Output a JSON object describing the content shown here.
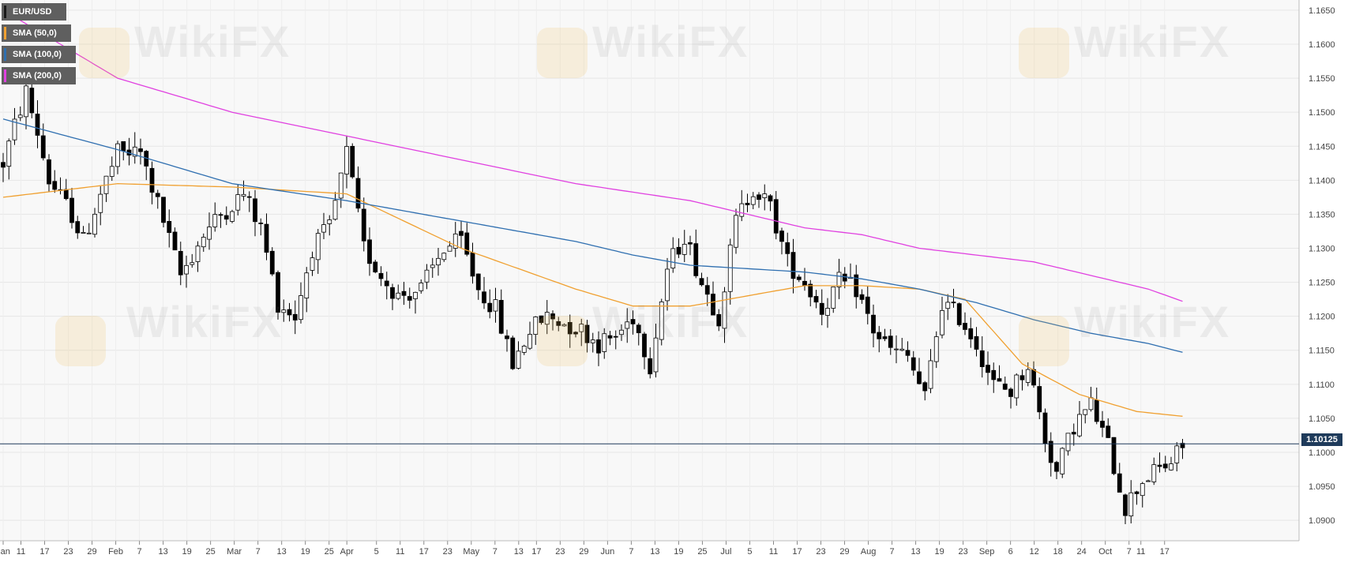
{
  "chart_data": {
    "type": "candlestick",
    "legend_placement": "top-left",
    "legend": [
      "EUR/USD",
      "SMA (50,0)",
      "SMA (100,0)",
      "SMA (200,0)"
    ],
    "colors": {
      "up_candle": "#ffffff",
      "down_candle": "#000000",
      "sma50": "#f0a030",
      "sma100": "#2f6fb0",
      "sma200": "#e040e0",
      "price_line": "#1f3b5b",
      "grid": "#e6e6e6",
      "background": "#f8f8f8"
    },
    "y_ticks": [
      "1.1650",
      "1.1600",
      "1.1550",
      "1.1500",
      "1.1450",
      "1.1400",
      "1.1350",
      "1.1300",
      "1.1250",
      "1.1200",
      "1.1150",
      "1.1100",
      "1.1050",
      "1.1000",
      "1.0950",
      "1.0900"
    ],
    "x_ticks": [
      "Jan",
      "11",
      "17",
      "23",
      "29",
      "Feb",
      "7",
      "13",
      "19",
      "25",
      "Mar",
      "7",
      "13",
      "19",
      "25",
      "Apr",
      "5",
      "11",
      "17",
      "23",
      "May",
      "7",
      "13",
      "17",
      "23",
      "29",
      "Jun",
      "7",
      "13",
      "19",
      "25",
      "Jul",
      "5",
      "11",
      "17",
      "23",
      "29",
      "Aug",
      "7",
      "13",
      "19",
      "23",
      "Sep",
      "6",
      "12",
      "18",
      "24",
      "Oct",
      "7",
      "11",
      "17"
    ],
    "ylim": [
      1.087,
      1.1665
    ],
    "grid": true,
    "current_price": 1.10125,
    "current_price_label": "1.10125",
    "x_start": "2019-01-07",
    "ohlc_days": 198,
    "ohlc_keypoints": [
      [
        0,
        1.1425
      ],
      [
        2,
        1.148
      ],
      [
        4,
        1.153
      ],
      [
        6,
        1.147
      ],
      [
        8,
        1.14
      ],
      [
        12,
        1.135
      ],
      [
        14,
        1.131
      ],
      [
        17,
        1.138
      ],
      [
        20,
        1.144
      ],
      [
        24,
        1.144
      ],
      [
        28,
        1.134
      ],
      [
        31,
        1.126
      ],
      [
        35,
        1.132
      ],
      [
        38,
        1.135
      ],
      [
        42,
        1.138
      ],
      [
        45,
        1.133
      ],
      [
        48,
        1.122
      ],
      [
        51,
        1.12
      ],
      [
        54,
        1.13
      ],
      [
        57,
        1.133
      ],
      [
        60,
        1.144
      ],
      [
        63,
        1.13
      ],
      [
        66,
        1.126
      ],
      [
        69,
        1.123
      ],
      [
        73,
        1.124
      ],
      [
        77,
        1.13
      ],
      [
        80,
        1.131
      ],
      [
        83,
        1.124
      ],
      [
        86,
        1.121
      ],
      [
        89,
        1.113
      ],
      [
        92,
        1.118
      ],
      [
        95,
        1.12
      ],
      [
        98,
        1.119
      ],
      [
        101,
        1.118
      ],
      [
        104,
        1.116
      ],
      [
        107,
        1.117
      ],
      [
        110,
        1.12
      ],
      [
        113,
        1.113
      ],
      [
        116,
        1.127
      ],
      [
        119,
        1.132
      ],
      [
        122,
        1.125
      ],
      [
        125,
        1.12
      ],
      [
        128,
        1.134
      ],
      [
        131,
        1.139
      ],
      [
        134,
        1.136
      ],
      [
        137,
        1.128
      ],
      [
        140,
        1.125
      ],
      [
        143,
        1.121
      ],
      [
        146,
        1.125
      ],
      [
        149,
        1.124
      ],
      [
        152,
        1.118
      ],
      [
        155,
        1.115
      ],
      [
        158,
        1.114
      ],
      [
        161,
        1.108
      ],
      [
        164,
        1.122
      ],
      [
        167,
        1.12
      ],
      [
        170,
        1.116
      ],
      [
        173,
        1.11
      ],
      [
        176,
        1.109
      ],
      [
        179,
        1.113
      ],
      [
        182,
        1.102
      ],
      [
        184,
        1.097
      ],
      [
        187,
        1.104
      ],
      [
        190,
        1.107
      ],
      [
        193,
        1.101
      ],
      [
        196,
        1.092
      ],
      [
        199,
        1.096
      ],
      [
        202,
        1.0975
      ],
      [
        204,
        1.0985
      ],
      [
        206,
        1.101
      ]
    ],
    "sma50": [
      [
        0,
        1.1375
      ],
      [
        20,
        1.1395
      ],
      [
        40,
        1.139
      ],
      [
        60,
        1.138
      ],
      [
        80,
        1.13
      ],
      [
        100,
        1.124
      ],
      [
        110,
        1.1215
      ],
      [
        120,
        1.1215
      ],
      [
        130,
        1.123
      ],
      [
        140,
        1.1245
      ],
      [
        150,
        1.1245
      ],
      [
        160,
        1.124
      ],
      [
        168,
        1.1225
      ],
      [
        178,
        1.113
      ],
      [
        188,
        1.1085
      ],
      [
        198,
        1.106
      ],
      [
        206,
        1.1053
      ]
    ],
    "sma100": [
      [
        0,
        1.149
      ],
      [
        20,
        1.1445
      ],
      [
        40,
        1.1395
      ],
      [
        60,
        1.137
      ],
      [
        80,
        1.134
      ],
      [
        100,
        1.131
      ],
      [
        110,
        1.129
      ],
      [
        120,
        1.1275
      ],
      [
        130,
        1.127
      ],
      [
        140,
        1.1265
      ],
      [
        150,
        1.1255
      ],
      [
        160,
        1.124
      ],
      [
        170,
        1.122
      ],
      [
        180,
        1.1195
      ],
      [
        190,
        1.1175
      ],
      [
        200,
        1.116
      ],
      [
        206,
        1.1147
      ]
    ],
    "sma200": [
      [
        0,
        1.165
      ],
      [
        20,
        1.155
      ],
      [
        40,
        1.15
      ],
      [
        60,
        1.1465
      ],
      [
        80,
        1.143
      ],
      [
        100,
        1.1395
      ],
      [
        120,
        1.137
      ],
      [
        140,
        1.133
      ],
      [
        150,
        1.132
      ],
      [
        160,
        1.13
      ],
      [
        170,
        1.129
      ],
      [
        180,
        1.128
      ],
      [
        190,
        1.126
      ],
      [
        200,
        1.124
      ],
      [
        206,
        1.1222
      ]
    ]
  },
  "watermark": "WikiFX"
}
